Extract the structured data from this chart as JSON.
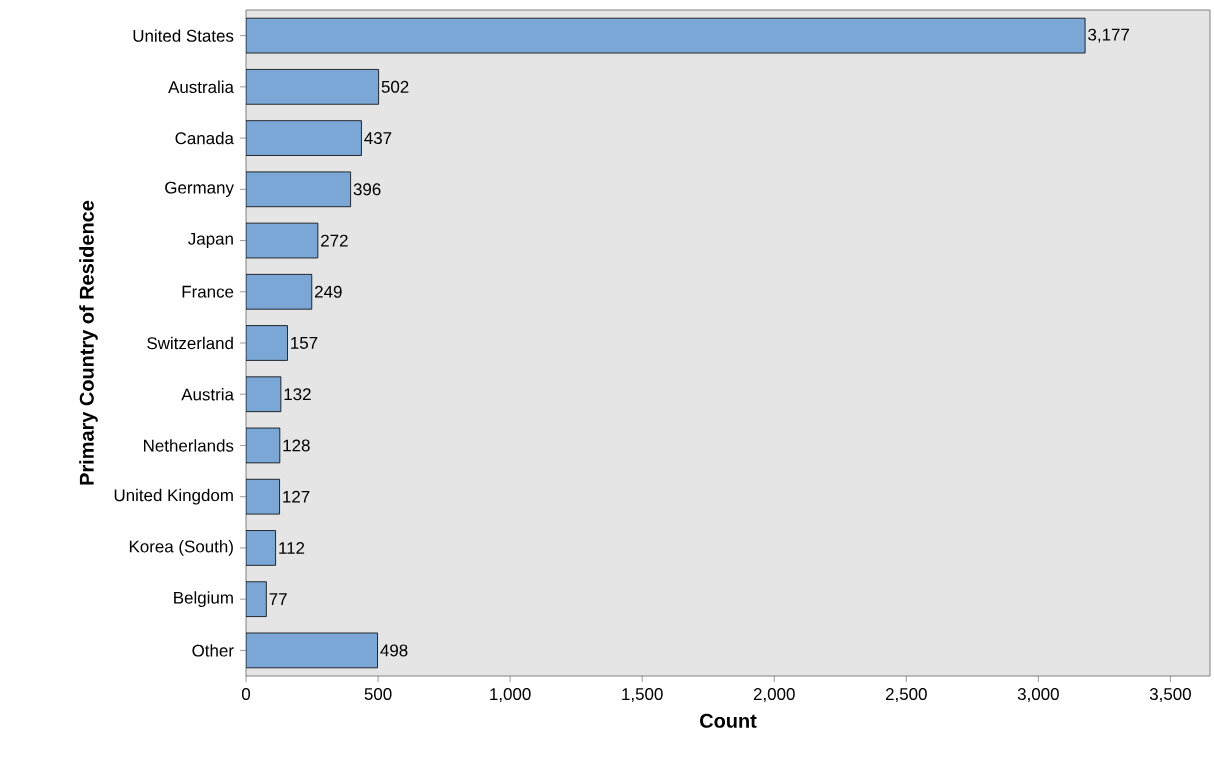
{
  "chart_data": {
    "type": "bar",
    "orientation": "horizontal",
    "xlabel": "Count",
    "ylabel": "Primary Country of Residence",
    "categories": [
      "United States",
      "Australia",
      "Canada",
      "Germany",
      "Japan",
      "France",
      "Switzerland",
      "Austria",
      "Netherlands",
      "United Kingdom",
      "Korea (South)",
      "Belgium",
      "Other"
    ],
    "values": [
      3177,
      502,
      437,
      396,
      272,
      249,
      157,
      132,
      128,
      127,
      112,
      77,
      498
    ],
    "value_labels": [
      "3,177",
      "502",
      "437",
      "396",
      "272",
      "249",
      "157",
      "132",
      "128",
      "127",
      "112",
      "77",
      "498"
    ],
    "color": "#7ba7d6",
    "xlim": [
      0,
      3650
    ],
    "xticks": [
      0,
      500,
      {
        "value": 1000,
        "label": "1,000"
      },
      {
        "value": 1500,
        "label": "1,500"
      },
      {
        "value": 2000,
        "label": "2,000"
      },
      {
        "value": 2500,
        "label": "2,500"
      },
      {
        "value": 3000,
        "label": "3,000"
      },
      {
        "value": 3500,
        "label": "3,500"
      }
    ],
    "grid": false
  }
}
